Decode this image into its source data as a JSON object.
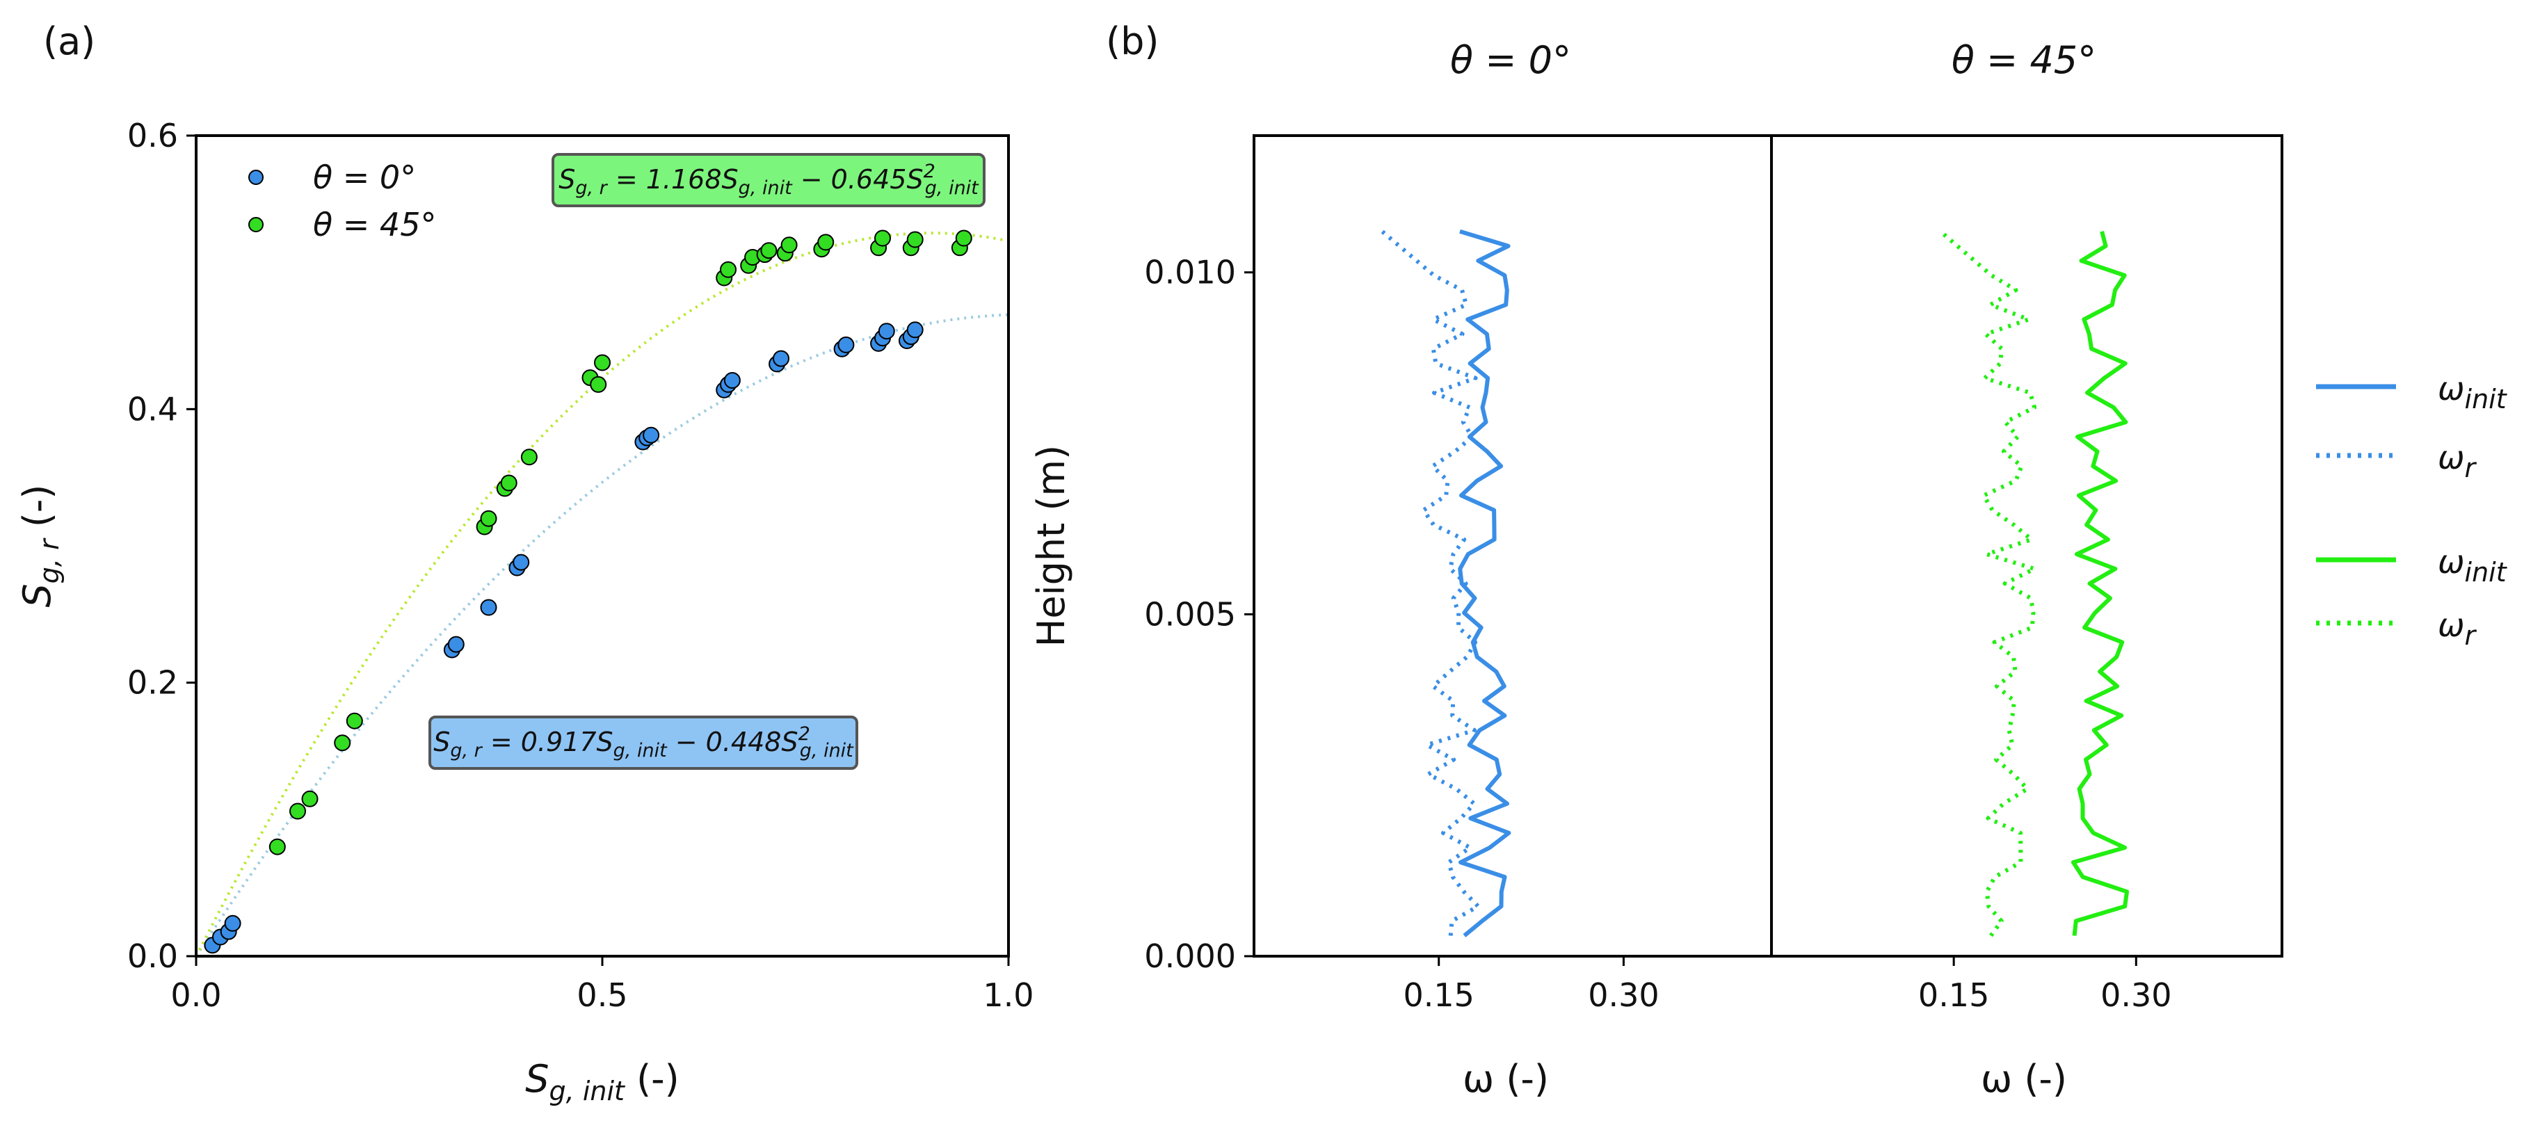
{
  "figure": {
    "panel_a_label": "(a)",
    "panel_b_label": "(b)"
  },
  "chart_data": [
    {
      "type": "scatter",
      "panel": "(a)",
      "xlabel_main": "S",
      "xlabel_sub": "g, init",
      "xlabel_unit": " (-)",
      "ylabel_main": "S",
      "ylabel_sub": "g, r",
      "ylabel_unit": " (-)",
      "xlim": [
        0.0,
        1.0
      ],
      "ylim": [
        0.0,
        0.6
      ],
      "xticks": [
        0.0,
        0.5,
        1.0
      ],
      "xtick_labels": [
        "0.0",
        "0.5",
        "1.0"
      ],
      "yticks": [
        0.0,
        0.2,
        0.4,
        0.6
      ],
      "ytick_labels": [
        "0.0",
        "0.2",
        "0.4",
        "0.6"
      ],
      "legend_location": "top-left",
      "series": [
        {
          "name": "θ = 0°",
          "color": "#3a8ee6",
          "fit": {
            "a": 0.917,
            "b": 0.448
          },
          "equation_parts": [
            "S",
            "g, r",
            " = 0.917S",
            "g, init",
            " − 0.448S",
            "2",
            "g, init"
          ],
          "equation_box_color": "#8ec4f4",
          "x": [
            0.02,
            0.03,
            0.04,
            0.045,
            0.315,
            0.32,
            0.36,
            0.395,
            0.4,
            0.55,
            0.555,
            0.56,
            0.65,
            0.655,
            0.66,
            0.715,
            0.72,
            0.795,
            0.8,
            0.84,
            0.845,
            0.85,
            0.875,
            0.88,
            0.885
          ],
          "y": [
            0.008,
            0.014,
            0.018,
            0.024,
            0.224,
            0.228,
            0.255,
            0.284,
            0.288,
            0.376,
            0.379,
            0.381,
            0.414,
            0.418,
            0.421,
            0.433,
            0.437,
            0.444,
            0.447,
            0.448,
            0.452,
            0.457,
            0.45,
            0.453,
            0.458
          ]
        },
        {
          "name": "θ = 45°",
          "color": "#33dd22",
          "fit": {
            "a": 1.168,
            "b": 0.645
          },
          "equation_parts": [
            "S",
            "g, r",
            " = 1.168S",
            "g, init",
            " − 0.645S",
            "2",
            "g, init"
          ],
          "equation_box_color": "#7cf57c",
          "x": [
            0.1,
            0.125,
            0.14,
            0.18,
            0.195,
            0.355,
            0.36,
            0.38,
            0.385,
            0.41,
            0.485,
            0.495,
            0.5,
            0.65,
            0.655,
            0.68,
            0.685,
            0.7,
            0.705,
            0.725,
            0.73,
            0.77,
            0.775,
            0.84,
            0.845,
            0.88,
            0.885,
            0.94,
            0.945
          ],
          "y": [
            0.08,
            0.106,
            0.115,
            0.156,
            0.172,
            0.314,
            0.32,
            0.342,
            0.346,
            0.365,
            0.423,
            0.418,
            0.434,
            0.496,
            0.502,
            0.505,
            0.511,
            0.513,
            0.516,
            0.514,
            0.52,
            0.517,
            0.522,
            0.518,
            0.525,
            0.518,
            0.524,
            0.518,
            0.525
          ]
        }
      ]
    },
    {
      "type": "line",
      "panel": "(b)",
      "subplots": [
        {
          "title": "θ = 0°",
          "color": "#3a8ee6",
          "init_mean": 0.185,
          "r_mean": 0.16
        },
        {
          "title": "θ = 45°",
          "color": "#22ee11",
          "init_mean": 0.27,
          "r_mean": 0.195
        }
      ],
      "xlabel": "ω (-)",
      "ylabel": "Height (m)",
      "xlim": [
        0.0,
        0.42
      ],
      "ylim": [
        0.0,
        0.012
      ],
      "xticks": [
        0.15,
        0.3
      ],
      "xtick_labels": [
        "0.15",
        "0.30"
      ],
      "yticks": [
        0.0,
        0.005,
        0.01
      ],
      "ytick_labels": [
        "0.000",
        "0.005",
        "0.010"
      ],
      "height_range": [
        0.0003,
        0.0106
      ],
      "legend_location": "right-outside",
      "legend": [
        {
          "symbol": "ω",
          "sub": "init",
          "style": "solid",
          "color": "#3a8ee6"
        },
        {
          "symbol": "ω",
          "sub": "r",
          "style": "dotted",
          "color": "#3a8ee6"
        },
        {
          "symbol": "ω",
          "sub": "init",
          "style": "solid",
          "color": "#22ee11"
        },
        {
          "symbol": "ω",
          "sub": "r",
          "style": "dotted",
          "color": "#22ee11"
        }
      ]
    }
  ]
}
